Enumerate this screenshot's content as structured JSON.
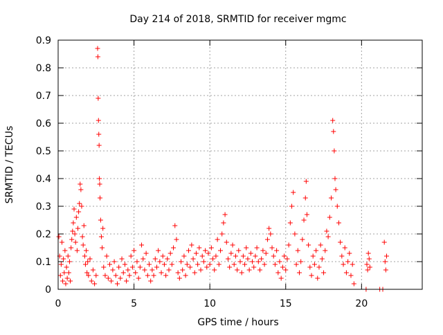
{
  "chart_data": {
    "type": "scatter",
    "title": "Day 214 of 2018, SRMTID for receiver mgmc",
    "xlabel": "GPS time / hours",
    "ylabel": "SRMTID / TECUs",
    "xlim": [
      0,
      24
    ],
    "ylim": [
      0,
      0.9
    ],
    "xticks": [
      0,
      5,
      10,
      15,
      20
    ],
    "yticks": [
      0,
      0.1,
      0.2,
      0.3,
      0.4,
      0.5,
      0.6,
      0.7,
      0.8,
      0.9
    ],
    "grid": true,
    "marker": "+",
    "marker_color": "#ff0000",
    "series": [
      {
        "name": "mgmc",
        "points": [
          [
            0.05,
            0.19
          ],
          [
            0.1,
            0.12
          ],
          [
            0.15,
            0.05
          ],
          [
            0.2,
            0.09
          ],
          [
            0.25,
            0.17
          ],
          [
            0.3,
            0.03
          ],
          [
            0.35,
            0.11
          ],
          [
            0.4,
            0.06
          ],
          [
            0.45,
            0.14
          ],
          [
            0.5,
            0.02
          ],
          [
            0.55,
            0.08
          ],
          [
            0.6,
            0.04
          ],
          [
            0.65,
            0.12
          ],
          [
            0.7,
            0.06
          ],
          [
            0.75,
            0.1
          ],
          [
            0.8,
            0.03
          ],
          [
            0.85,
            0.15
          ],
          [
            0.9,
            0.18
          ],
          [
            0.95,
            0.21
          ],
          [
            1.0,
            0.24
          ],
          [
            1.05,
            0.29
          ],
          [
            1.1,
            0.2
          ],
          [
            1.15,
            0.17
          ],
          [
            1.2,
            0.26
          ],
          [
            1.25,
            0.14
          ],
          [
            1.3,
            0.22
          ],
          [
            1.35,
            0.28
          ],
          [
            1.4,
            0.31
          ],
          [
            1.45,
            0.38
          ],
          [
            1.5,
            0.36
          ],
          [
            1.55,
            0.3
          ],
          [
            1.6,
            0.19
          ],
          [
            1.65,
            0.16
          ],
          [
            1.7,
            0.23
          ],
          [
            1.75,
            0.12
          ],
          [
            1.8,
            0.09
          ],
          [
            1.85,
            0.14
          ],
          [
            1.9,
            0.06
          ],
          [
            1.95,
            0.1
          ],
          [
            2.0,
            0.05
          ],
          [
            2.1,
            0.11
          ],
          [
            2.2,
            0.03
          ],
          [
            2.3,
            0.07
          ],
          [
            2.4,
            0.02
          ],
          [
            2.5,
            0.05
          ],
          [
            2.6,
            0.87
          ],
          [
            2.62,
            0.84
          ],
          [
            2.64,
            0.69
          ],
          [
            2.66,
            0.61
          ],
          [
            2.68,
            0.56
          ],
          [
            2.7,
            0.52
          ],
          [
            2.72,
            0.4
          ],
          [
            2.74,
            0.38
          ],
          [
            2.76,
            0.33
          ],
          [
            2.8,
            0.25
          ],
          [
            2.85,
            0.19
          ],
          [
            2.9,
            0.15
          ],
          [
            2.95,
            0.22
          ],
          [
            3.0,
            0.08
          ],
          [
            3.1,
            0.05
          ],
          [
            3.2,
            0.12
          ],
          [
            3.3,
            0.04
          ],
          [
            3.4,
            0.09
          ],
          [
            3.5,
            0.03
          ],
          [
            3.6,
            0.07
          ],
          [
            3.7,
            0.1
          ],
          [
            3.8,
            0.05
          ],
          [
            3.9,
            0.02
          ],
          [
            4.0,
            0.08
          ],
          [
            4.1,
            0.04
          ],
          [
            4.2,
            0.11
          ],
          [
            4.3,
            0.06
          ],
          [
            4.4,
            0.09
          ],
          [
            4.5,
            0.03
          ],
          [
            4.6,
            0.07
          ],
          [
            4.7,
            0.05
          ],
          [
            4.8,
            0.12
          ],
          [
            4.9,
            0.08
          ],
          [
            5.0,
            0.14
          ],
          [
            5.1,
            0.06
          ],
          [
            5.2,
            0.1
          ],
          [
            5.3,
            0.04
          ],
          [
            5.4,
            0.08
          ],
          [
            5.5,
            0.16
          ],
          [
            5.6,
            0.11
          ],
          [
            5.7,
            0.07
          ],
          [
            5.8,
            0.13
          ],
          [
            5.9,
            0.05
          ],
          [
            6.0,
            0.09
          ],
          [
            6.1,
            0.03
          ],
          [
            6.2,
            0.07
          ],
          [
            6.3,
            0.05
          ],
          [
            6.4,
            0.11
          ],
          [
            6.5,
            0.08
          ],
          [
            6.6,
            0.14
          ],
          [
            6.7,
            0.1
          ],
          [
            6.8,
            0.06
          ],
          [
            6.9,
            0.12
          ],
          [
            7.0,
            0.09
          ],
          [
            7.1,
            0.05
          ],
          [
            7.2,
            0.11
          ],
          [
            7.3,
            0.07
          ],
          [
            7.4,
            0.13
          ],
          [
            7.5,
            0.09
          ],
          [
            7.6,
            0.15
          ],
          [
            7.7,
            0.23
          ],
          [
            7.8,
            0.18
          ],
          [
            7.9,
            0.06
          ],
          [
            8.0,
            0.04
          ],
          [
            8.1,
            0.1
          ],
          [
            8.2,
            0.07
          ],
          [
            8.3,
            0.12
          ],
          [
            8.4,
            0.05
          ],
          [
            8.5,
            0.09
          ],
          [
            8.6,
            0.14
          ],
          [
            8.7,
            0.08
          ],
          [
            8.8,
            0.16
          ],
          [
            8.9,
            0.11
          ],
          [
            9.0,
            0.06
          ],
          [
            9.1,
            0.13
          ],
          [
            9.2,
            0.09
          ],
          [
            9.3,
            0.15
          ],
          [
            9.4,
            0.07
          ],
          [
            9.5,
            0.12
          ],
          [
            9.6,
            0.1
          ],
          [
            9.7,
            0.14
          ],
          [
            9.8,
            0.08
          ],
          [
            9.9,
            0.13
          ],
          [
            10.0,
            0.09
          ],
          [
            10.1,
            0.15
          ],
          [
            10.2,
            0.11
          ],
          [
            10.3,
            0.07
          ],
          [
            10.4,
            0.12
          ],
          [
            10.5,
            0.18
          ],
          [
            10.6,
            0.09
          ],
          [
            10.7,
            0.14
          ],
          [
            10.8,
            0.2
          ],
          [
            10.9,
            0.24
          ],
          [
            11.0,
            0.27
          ],
          [
            11.1,
            0.17
          ],
          [
            11.2,
            0.11
          ],
          [
            11.3,
            0.08
          ],
          [
            11.4,
            0.13
          ],
          [
            11.5,
            0.16
          ],
          [
            11.6,
            0.09
          ],
          [
            11.7,
            0.12
          ],
          [
            11.8,
            0.07
          ],
          [
            11.9,
            0.14
          ],
          [
            12.0,
            0.1
          ],
          [
            12.1,
            0.06
          ],
          [
            12.2,
            0.12
          ],
          [
            12.3,
            0.09
          ],
          [
            12.4,
            0.15
          ],
          [
            12.5,
            0.11
          ],
          [
            12.6,
            0.07
          ],
          [
            12.7,
            0.13
          ],
          [
            12.8,
            0.1
          ],
          [
            12.9,
            0.08
          ],
          [
            13.0,
            0.12
          ],
          [
            13.1,
            0.15
          ],
          [
            13.2,
            0.1
          ],
          [
            13.3,
            0.07
          ],
          [
            13.4,
            0.11
          ],
          [
            13.5,
            0.14
          ],
          [
            13.6,
            0.09
          ],
          [
            13.7,
            0.13
          ],
          [
            13.8,
            0.18
          ],
          [
            13.9,
            0.22
          ],
          [
            14.0,
            0.2
          ],
          [
            14.1,
            0.15
          ],
          [
            14.2,
            0.12
          ],
          [
            14.3,
            0.09
          ],
          [
            14.4,
            0.14
          ],
          [
            14.5,
            0.06
          ],
          [
            14.6,
            0.1
          ],
          [
            14.7,
            0.04
          ],
          [
            14.8,
            0.08
          ],
          [
            14.9,
            0.12
          ],
          [
            15.0,
            0.07
          ],
          [
            15.1,
            0.11
          ],
          [
            15.2,
            0.16
          ],
          [
            15.3,
            0.24
          ],
          [
            15.4,
            0.3
          ],
          [
            15.5,
            0.35
          ],
          [
            15.6,
            0.2
          ],
          [
            15.7,
            0.09
          ],
          [
            15.8,
            0.14
          ],
          [
            15.9,
            0.06
          ],
          [
            16.0,
            0.1
          ],
          [
            16.1,
            0.18
          ],
          [
            16.2,
            0.25
          ],
          [
            16.3,
            0.33
          ],
          [
            16.35,
            0.39
          ],
          [
            16.4,
            0.27
          ],
          [
            16.5,
            0.16
          ],
          [
            16.6,
            0.08
          ],
          [
            16.7,
            0.05
          ],
          [
            16.8,
            0.12
          ],
          [
            16.9,
            0.09
          ],
          [
            17.0,
            0.14
          ],
          [
            17.1,
            0.04
          ],
          [
            17.2,
            0.08
          ],
          [
            17.3,
            0.16
          ],
          [
            17.4,
            0.11
          ],
          [
            17.5,
            0.06
          ],
          [
            17.6,
            0.14
          ],
          [
            17.7,
            0.21
          ],
          [
            17.8,
            0.19
          ],
          [
            17.9,
            0.26
          ],
          [
            18.0,
            0.33
          ],
          [
            18.1,
            0.61
          ],
          [
            18.15,
            0.57
          ],
          [
            18.2,
            0.5
          ],
          [
            18.25,
            0.4
          ],
          [
            18.3,
            0.36
          ],
          [
            18.4,
            0.3
          ],
          [
            18.5,
            0.24
          ],
          [
            18.6,
            0.17
          ],
          [
            18.7,
            0.12
          ],
          [
            18.8,
            0.09
          ],
          [
            18.9,
            0.15
          ],
          [
            19.0,
            0.06
          ],
          [
            19.1,
            0.1
          ],
          [
            19.2,
            0.13
          ],
          [
            19.3,
            0.05
          ],
          [
            19.4,
            0.09
          ],
          [
            19.5,
            0.02
          ],
          [
            20.3,
            0.0
          ],
          [
            20.35,
            0.09
          ],
          [
            20.4,
            0.07
          ],
          [
            20.45,
            0.13
          ],
          [
            20.5,
            0.11
          ],
          [
            20.55,
            0.08
          ],
          [
            21.2,
            0.0
          ],
          [
            21.4,
            0.0
          ],
          [
            21.5,
            0.17
          ],
          [
            21.55,
            0.1
          ],
          [
            21.6,
            0.07
          ],
          [
            21.65,
            0.12
          ]
        ]
      }
    ]
  }
}
